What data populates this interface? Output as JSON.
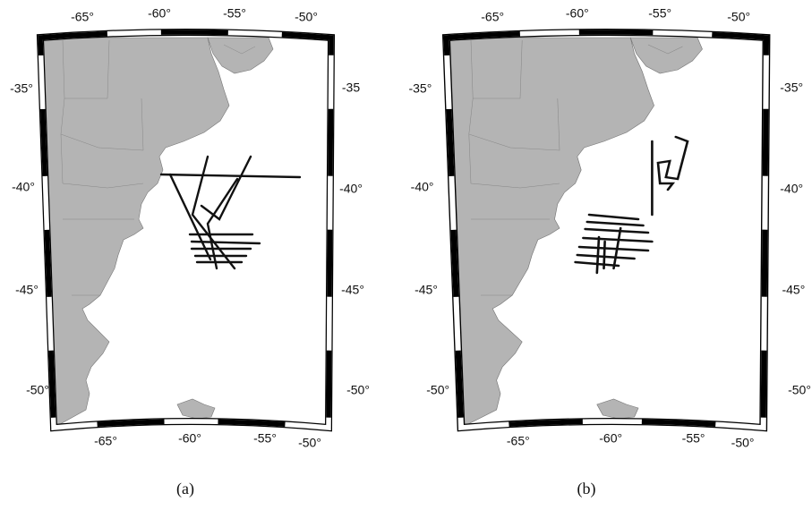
{
  "panels": [
    {
      "caption": "(a)",
      "top_labels": [
        "-65°",
        "-60°",
        "-55°",
        "-50°"
      ],
      "left_labels": [
        "-35°",
        "-40°",
        "-45°",
        "-50°"
      ],
      "right_labels": [
        "-35",
        "-40°",
        "-45°",
        "-50°"
      ],
      "bottom_labels": [
        "-65°",
        "-60°",
        "-55°",
        "-50°"
      ]
    },
    {
      "caption": "(b)",
      "top_labels": [
        "-65°",
        "-60°",
        "-55°",
        "-50°"
      ],
      "left_labels": [
        "-35°",
        "-40°",
        "-45°",
        "-50°"
      ],
      "right_labels": [
        "-35°",
        "-40°",
        "-45°",
        "-50°"
      ],
      "bottom_labels": [
        "-65°",
        "-60°",
        "-55°",
        "-50°"
      ]
    }
  ]
}
